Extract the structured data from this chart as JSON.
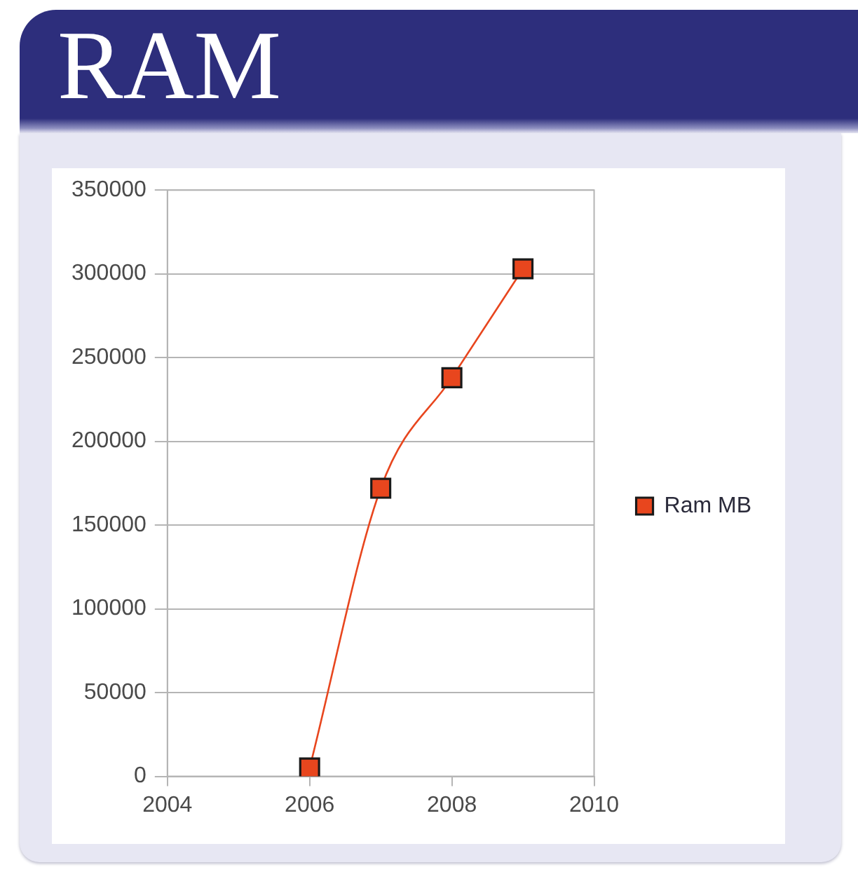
{
  "chart_data": {
    "type": "line",
    "title": "RAM",
    "x": [
      2006,
      2007,
      2008,
      2009
    ],
    "series": [
      {
        "name": "Ram MB",
        "color": "#e8461e",
        "values": [
          5000,
          172000,
          238000,
          303000
        ]
      }
    ],
    "xlim": [
      2004,
      2010
    ],
    "xticks": [
      2004,
      2006,
      2008,
      2010
    ],
    "ylim": [
      0,
      350000
    ],
    "yticks": [
      0,
      50000,
      100000,
      150000,
      200000,
      250000,
      300000,
      350000
    ],
    "grid": "y",
    "legend": "right",
    "marker": "square",
    "line_style": "solid"
  }
}
